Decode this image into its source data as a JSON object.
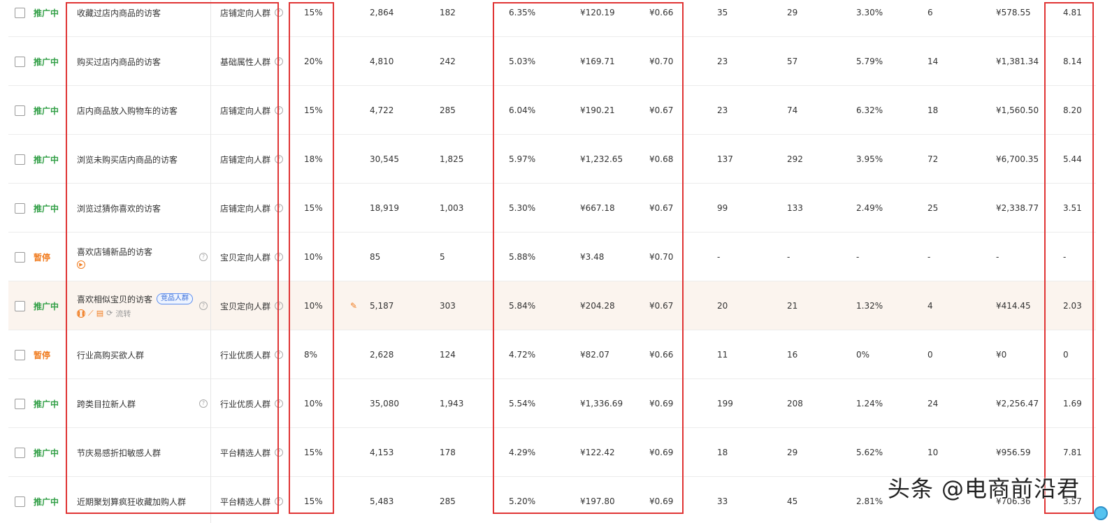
{
  "rows": [
    {
      "status": "推广中",
      "status_type": "on",
      "name": "收藏过店内商品的访客",
      "has_help": false,
      "has_badge": false,
      "sub_icons": false,
      "type": "店铺定向人群",
      "premium": "15%",
      "impressions": "2,864",
      "clicks": "182",
      "ctr": "6.35%",
      "cost": "¥120.19",
      "cpc": "¥0.66",
      "c1": "35",
      "c2": "29",
      "c3": "3.30%",
      "c4": "6",
      "c5": "¥578.55",
      "roi": "4.81",
      "highlight": false,
      "pencil": false
    },
    {
      "status": "推广中",
      "status_type": "on",
      "name": "购买过店内商品的访客",
      "has_help": false,
      "has_badge": false,
      "sub_icons": false,
      "type": "基础属性人群",
      "premium": "20%",
      "impressions": "4,810",
      "clicks": "242",
      "ctr": "5.03%",
      "cost": "¥169.71",
      "cpc": "¥0.70",
      "c1": "23",
      "c2": "57",
      "c3": "5.79%",
      "c4": "14",
      "c5": "¥1,381.34",
      "roi": "8.14",
      "highlight": false,
      "pencil": false
    },
    {
      "status": "推广中",
      "status_type": "on",
      "name": "店内商品放入购物车的访客",
      "has_help": false,
      "has_badge": false,
      "sub_icons": false,
      "type": "店铺定向人群",
      "premium": "15%",
      "impressions": "4,722",
      "clicks": "285",
      "ctr": "6.04%",
      "cost": "¥190.21",
      "cpc": "¥0.67",
      "c1": "23",
      "c2": "74",
      "c3": "6.32%",
      "c4": "18",
      "c5": "¥1,560.50",
      "roi": "8.20",
      "highlight": false,
      "pencil": false
    },
    {
      "status": "推广中",
      "status_type": "on",
      "name": "浏览未购买店内商品的访客",
      "has_help": false,
      "has_badge": false,
      "sub_icons": false,
      "type": "店铺定向人群",
      "premium": "18%",
      "impressions": "30,545",
      "clicks": "1,825",
      "ctr": "5.97%",
      "cost": "¥1,232.65",
      "cpc": "¥0.68",
      "c1": "137",
      "c2": "292",
      "c3": "3.95%",
      "c4": "72",
      "c5": "¥6,700.35",
      "roi": "5.44",
      "highlight": false,
      "pencil": false
    },
    {
      "status": "推广中",
      "status_type": "on",
      "name": "浏览过猜你喜欢的访客",
      "has_help": false,
      "has_badge": false,
      "sub_icons": false,
      "type": "店铺定向人群",
      "premium": "15%",
      "impressions": "18,919",
      "clicks": "1,003",
      "ctr": "5.30%",
      "cost": "¥667.18",
      "cpc": "¥0.67",
      "c1": "99",
      "c2": "133",
      "c3": "2.49%",
      "c4": "25",
      "c5": "¥2,338.77",
      "roi": "3.51",
      "highlight": false,
      "pencil": false
    },
    {
      "status": "暂停",
      "status_type": "off",
      "name": "喜欢店铺新品的访客",
      "has_help": true,
      "has_badge": false,
      "sub_icons": "play",
      "type": "宝贝定向人群",
      "premium": "10%",
      "impressions": "85",
      "clicks": "5",
      "ctr": "5.88%",
      "cost": "¥3.48",
      "cpc": "¥0.70",
      "c1": "-",
      "c2": "-",
      "c3": "-",
      "c4": "-",
      "c5": "-",
      "roi": "-",
      "highlight": false,
      "pencil": false
    },
    {
      "status": "推广中",
      "status_type": "on",
      "name": "喜欢相似宝贝的访客",
      "has_help": true,
      "has_badge": true,
      "sub_icons": "full",
      "type": "宝贝定向人群",
      "premium": "10%",
      "impressions": "5,187",
      "clicks": "303",
      "ctr": "5.84%",
      "cost": "¥204.28",
      "cpc": "¥0.67",
      "c1": "20",
      "c2": "21",
      "c3": "1.32%",
      "c4": "4",
      "c5": "¥414.45",
      "roi": "2.03",
      "highlight": true,
      "pencil": true
    },
    {
      "status": "暂停",
      "status_type": "off",
      "name": "行业高购买欲人群",
      "has_help": false,
      "has_badge": false,
      "sub_icons": false,
      "type": "行业优质人群",
      "premium": "8%",
      "impressions": "2,628",
      "clicks": "124",
      "ctr": "4.72%",
      "cost": "¥82.07",
      "cpc": "¥0.66",
      "c1": "11",
      "c2": "16",
      "c3": "0%",
      "c4": "0",
      "c5": "¥0",
      "roi": "0",
      "highlight": false,
      "pencil": false
    },
    {
      "status": "推广中",
      "status_type": "on",
      "name": "跨类目拉新人群",
      "has_help": true,
      "has_badge": false,
      "sub_icons": false,
      "type": "行业优质人群",
      "premium": "10%",
      "impressions": "35,080",
      "clicks": "1,943",
      "ctr": "5.54%",
      "cost": "¥1,336.69",
      "cpc": "¥0.69",
      "c1": "199",
      "c2": "208",
      "c3": "1.24%",
      "c4": "24",
      "c5": "¥2,256.47",
      "roi": "1.69",
      "highlight": false,
      "pencil": false
    },
    {
      "status": "推广中",
      "status_type": "on",
      "name": "节庆易感折扣敏感人群",
      "has_help": false,
      "has_badge": false,
      "sub_icons": false,
      "type": "平台精选人群",
      "premium": "15%",
      "impressions": "4,153",
      "clicks": "178",
      "ctr": "4.29%",
      "cost": "¥122.42",
      "cpc": "¥0.69",
      "c1": "18",
      "c2": "29",
      "c3": "5.62%",
      "c4": "10",
      "c5": "¥956.59",
      "roi": "7.81",
      "highlight": false,
      "pencil": false
    },
    {
      "status": "推广中",
      "status_type": "on",
      "name": "近期聚划算疯狂收藏加购人群",
      "has_help": false,
      "has_badge": false,
      "sub_icons": false,
      "type": "平台精选人群",
      "premium": "15%",
      "impressions": "5,483",
      "clicks": "285",
      "ctr": "5.20%",
      "cost": "¥197.80",
      "cpc": "¥0.69",
      "c1": "33",
      "c2": "45",
      "c3": "2.81%",
      "c4": "",
      "c5": "¥706.36",
      "roi": "3.57",
      "highlight": false,
      "pencil": false
    }
  ],
  "badge_text": "竞品人群",
  "flow_text": "流转",
  "watermark": "头条 @电商前沿君",
  "colors": {
    "status_on": "#2f9e44",
    "status_off": "#f07c20",
    "highlight_row": "#fbf4ee",
    "red_box": "#e03434"
  }
}
